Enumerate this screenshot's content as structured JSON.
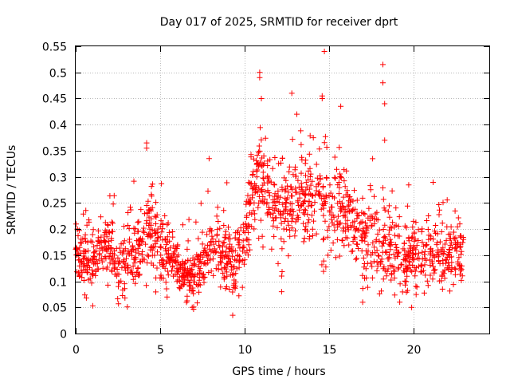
{
  "chart_data": {
    "type": "scatter",
    "title": "Day 017 of 2025, SRMTID for receiver dprt",
    "xlabel": "GPS time / hours",
    "ylabel": "SRMTID / TECUs",
    "xlim": [
      0,
      24.5
    ],
    "ylim": [
      0,
      0.55
    ],
    "xticks": [
      0,
      5,
      10,
      15,
      20
    ],
    "xtick_labels": [
      "0",
      "5",
      "10",
      "15",
      "20"
    ],
    "yticks": [
      0,
      0.05,
      0.1,
      0.15,
      0.2,
      0.25,
      0.3,
      0.35,
      0.4,
      0.45,
      0.5,
      0.55
    ],
    "ytick_labels": [
      "0",
      "0.05",
      "0.1",
      "0.15",
      "0.2",
      "0.25",
      "0.3",
      "0.35",
      "0.4",
      "0.45",
      "0.5",
      "0.55"
    ],
    "grid": true,
    "marker": "+",
    "color": "#ff0000",
    "x_range_data": [
      0,
      23.0
    ],
    "trend": [
      [
        0.0,
        0.16
      ],
      [
        0.5,
        0.14
      ],
      [
        1.0,
        0.13
      ],
      [
        1.5,
        0.15
      ],
      [
        2.0,
        0.17
      ],
      [
        2.5,
        0.12
      ],
      [
        3.0,
        0.13
      ],
      [
        3.5,
        0.15
      ],
      [
        4.0,
        0.19
      ],
      [
        4.5,
        0.2
      ],
      [
        5.0,
        0.16
      ],
      [
        5.5,
        0.15
      ],
      [
        6.0,
        0.13
      ],
      [
        6.5,
        0.11
      ],
      [
        7.0,
        0.1
      ],
      [
        7.5,
        0.13
      ],
      [
        8.0,
        0.16
      ],
      [
        8.5,
        0.15
      ],
      [
        9.0,
        0.14
      ],
      [
        9.5,
        0.13
      ],
      [
        10.0,
        0.16
      ],
      [
        10.5,
        0.28
      ],
      [
        11.0,
        0.3
      ],
      [
        11.5,
        0.26
      ],
      [
        12.0,
        0.24
      ],
      [
        12.5,
        0.23
      ],
      [
        13.0,
        0.26
      ],
      [
        13.5,
        0.25
      ],
      [
        14.0,
        0.25
      ],
      [
        14.5,
        0.27
      ],
      [
        15.0,
        0.22
      ],
      [
        15.5,
        0.25
      ],
      [
        16.0,
        0.22
      ],
      [
        16.5,
        0.2
      ],
      [
        17.0,
        0.17
      ],
      [
        17.5,
        0.17
      ],
      [
        18.0,
        0.16
      ],
      [
        18.5,
        0.16
      ],
      [
        19.0,
        0.14
      ],
      [
        19.5,
        0.13
      ],
      [
        20.0,
        0.15
      ],
      [
        20.5,
        0.15
      ],
      [
        21.0,
        0.15
      ],
      [
        21.5,
        0.15
      ],
      [
        22.0,
        0.15
      ],
      [
        22.5,
        0.15
      ],
      [
        23.0,
        0.15
      ]
    ],
    "spread": [
      [
        0.0,
        0.05
      ],
      [
        3.0,
        0.05
      ],
      [
        4.0,
        0.07
      ],
      [
        6.0,
        0.04
      ],
      [
        8.0,
        0.05
      ],
      [
        10.0,
        0.05
      ],
      [
        10.5,
        0.08
      ],
      [
        12.0,
        0.07
      ],
      [
        15.0,
        0.08
      ],
      [
        16.0,
        0.06
      ],
      [
        18.0,
        0.07
      ],
      [
        20.0,
        0.06
      ],
      [
        23.0,
        0.05
      ]
    ],
    "point_count": 1650,
    "notable_points": [
      {
        "x": 10.9,
        "y": 0.5
      },
      {
        "x": 10.9,
        "y": 0.49
      },
      {
        "x": 11.0,
        "y": 0.45
      },
      {
        "x": 18.2,
        "y": 0.515
      },
      {
        "x": 18.2,
        "y": 0.48
      },
      {
        "x": 18.3,
        "y": 0.44
      },
      {
        "x": 18.3,
        "y": 0.37
      },
      {
        "x": 12.8,
        "y": 0.46
      },
      {
        "x": 14.6,
        "y": 0.455
      },
      {
        "x": 14.6,
        "y": 0.45
      },
      {
        "x": 15.7,
        "y": 0.435
      },
      {
        "x": 13.1,
        "y": 0.42
      },
      {
        "x": 4.2,
        "y": 0.365
      },
      {
        "x": 4.2,
        "y": 0.355
      },
      {
        "x": 7.9,
        "y": 0.335
      },
      {
        "x": 9.3,
        "y": 0.035
      },
      {
        "x": 12.2,
        "y": 0.08
      },
      {
        "x": 12.2,
        "y": 0.11
      },
      {
        "x": 19.9,
        "y": 0.05
      },
      {
        "x": 17.0,
        "y": 0.06
      },
      {
        "x": 6.9,
        "y": 0.05
      }
    ]
  }
}
